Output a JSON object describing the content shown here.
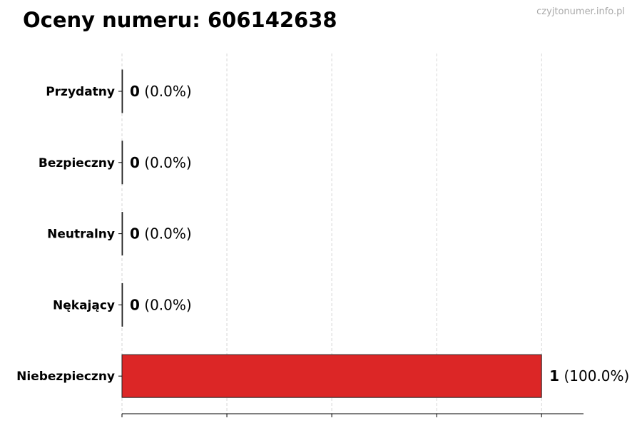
{
  "title": "Oceny numeru: 606142638",
  "watermark": "czyjtonumer.info.pl",
  "chart_data": {
    "type": "bar",
    "orientation": "horizontal",
    "title": "Oceny numeru: 606142638",
    "categories": [
      "Przydatny",
      "Bezpieczny",
      "Neutralny",
      "Nękający",
      "Niebezpieczny"
    ],
    "values": [
      0,
      0,
      0,
      0,
      1
    ],
    "data_labels": [
      {
        "count": "0",
        "pct": "(0.0%)"
      },
      {
        "count": "0",
        "pct": "(0.0%)"
      },
      {
        "count": "0",
        "pct": "(0.0%)"
      },
      {
        "count": "0",
        "pct": "(0.0%)"
      },
      {
        "count": "1",
        "pct": "(100.0%)"
      }
    ],
    "colors": [
      "#4caf50",
      "#2196f3",
      "#9e9e9e",
      "#ff9800",
      "#dc2626"
    ],
    "xlim": [
      0,
      1.1
    ],
    "xticks": [
      0,
      0.25,
      0.5,
      0.75,
      1.0
    ],
    "xtick_labels_shown": false,
    "grid": "x-dashed",
    "xlabel": "",
    "ylabel": ""
  }
}
